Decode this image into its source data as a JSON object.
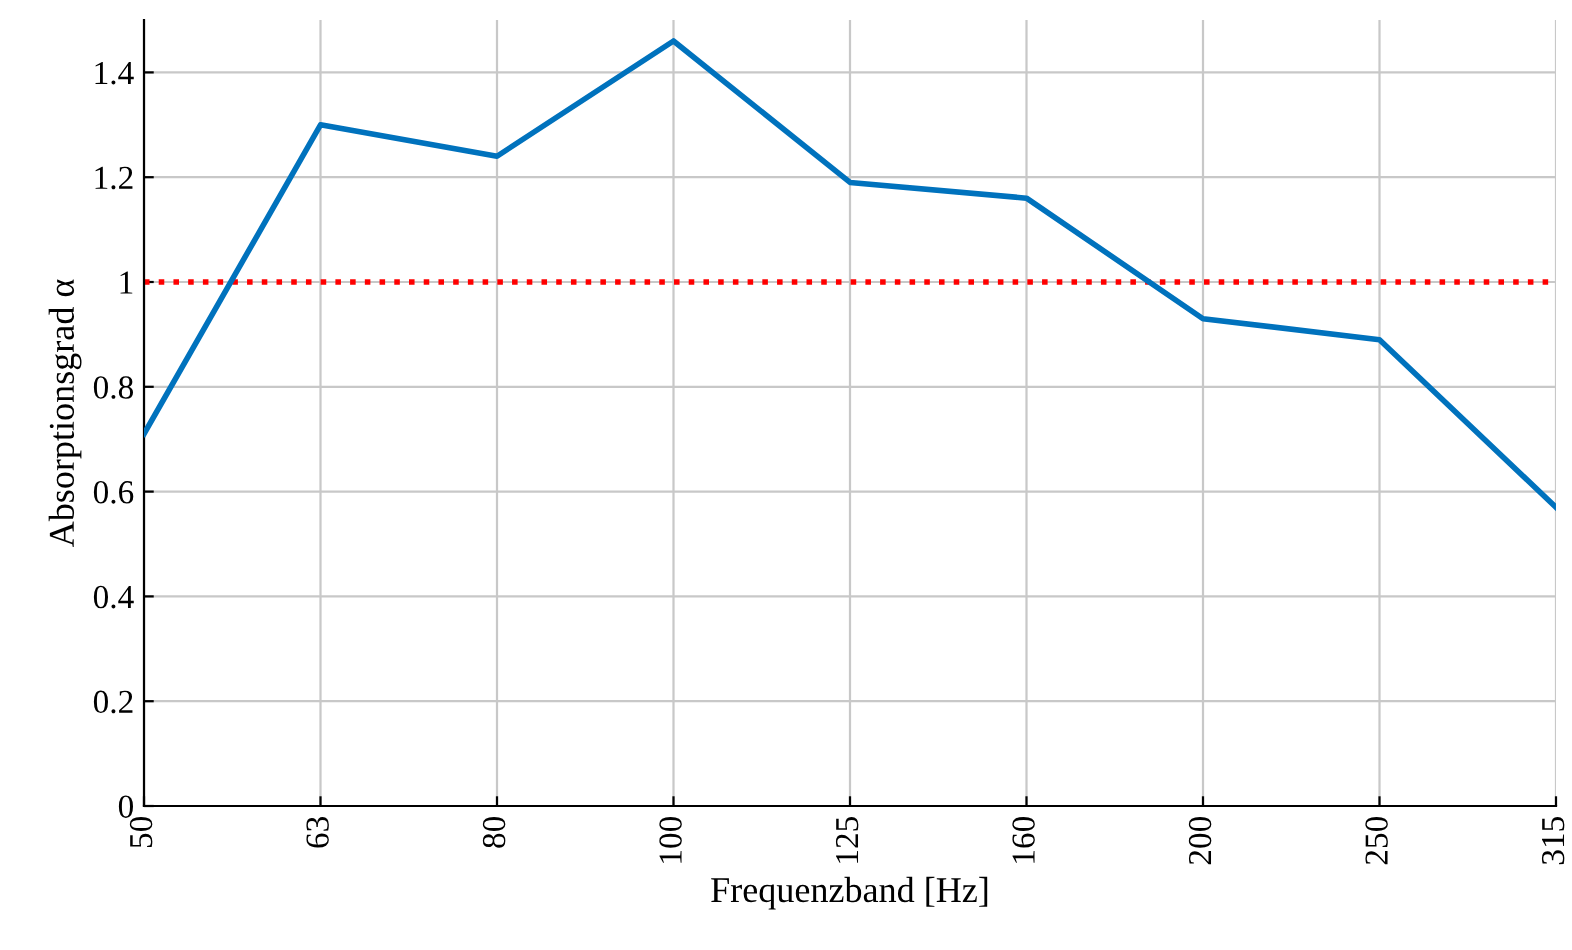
{
  "chart_data": {
    "type": "line",
    "xlabel": "Frequenzband [Hz]",
    "ylabel": "Absorptionsgrad α",
    "categories": [
      "50",
      "63",
      "80",
      "100",
      "125",
      "160",
      "200",
      "250",
      "315"
    ],
    "series": [
      {
        "color": "#0072bd",
        "values": [
          0.71,
          1.3,
          1.24,
          1.46,
          1.19,
          1.16,
          0.93,
          0.89,
          0.57
        ]
      }
    ],
    "ylim": [
      0,
      1.5
    ],
    "yticks": [
      0,
      0.2,
      0.4,
      0.6,
      0.8,
      1,
      1.2,
      1.4
    ],
    "ref_lines": [
      {
        "axis": "y",
        "value": 1,
        "color": "#ff0000",
        "line_style": "dotted"
      }
    ],
    "grid": true
  }
}
